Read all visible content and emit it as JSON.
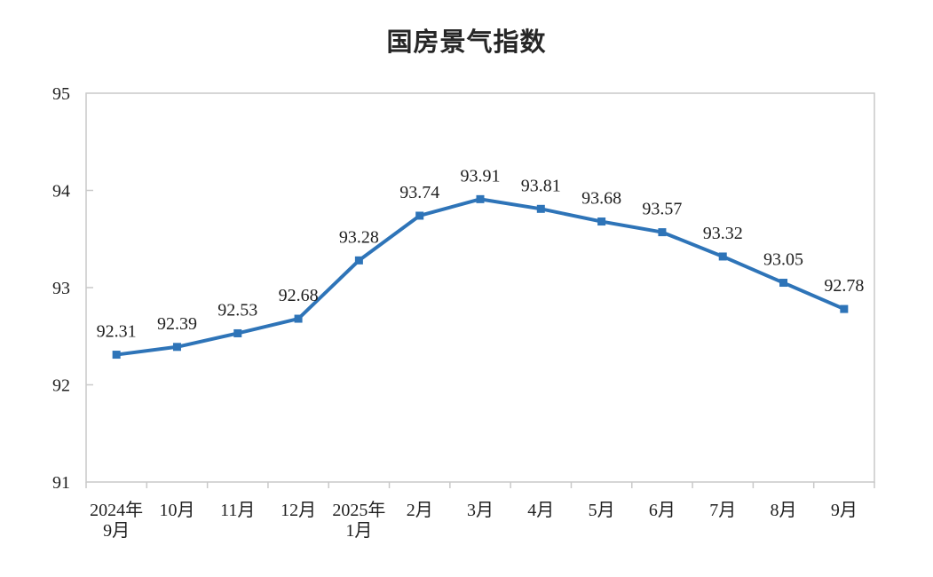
{
  "chart_data": {
    "type": "line",
    "title": "国房景气指数",
    "categories": [
      [
        "2024年",
        "9月"
      ],
      [
        "10月"
      ],
      [
        "11月"
      ],
      [
        "12月"
      ],
      [
        "2025年",
        "1月"
      ],
      [
        "2月"
      ],
      [
        "3月"
      ],
      [
        "4月"
      ],
      [
        "5月"
      ],
      [
        "6月"
      ],
      [
        "7月"
      ],
      [
        "8月"
      ],
      [
        "9月"
      ]
    ],
    "values": [
      92.31,
      92.39,
      92.53,
      92.68,
      93.28,
      93.74,
      93.91,
      93.81,
      93.68,
      93.57,
      93.32,
      93.05,
      92.78
    ],
    "data_labels": [
      "92.31",
      "92.39",
      "92.53",
      "92.68",
      "93.28",
      "93.74",
      "93.91",
      "93.81",
      "93.68",
      "93.57",
      "93.32",
      "93.05",
      "92.78"
    ],
    "xlabel": "",
    "ylabel": "",
    "ylim": [
      91,
      95
    ],
    "yticks": [
      91,
      92,
      93,
      94,
      95
    ],
    "grid": "off",
    "legend": "none",
    "marker": "square",
    "colors": {
      "line": "#2E74B8",
      "marker": "#2E74B8",
      "axis": "#C9C9C9",
      "text": "#1F1F1F",
      "title": "#262626",
      "background": "#FFFFFF"
    }
  }
}
